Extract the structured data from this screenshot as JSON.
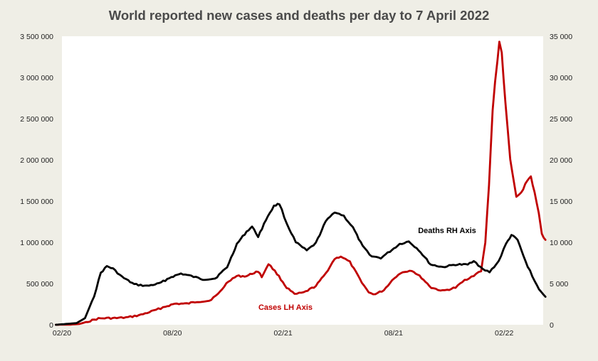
{
  "chart_data": {
    "type": "line",
    "title": "World reported new cases and deaths per day to 7 April 2022",
    "x_ticks": [
      "02/20",
      "08/20",
      "02/21",
      "08/21",
      "02/22"
    ],
    "y_left": {
      "ticks": [
        "0",
        "500 000",
        "1 000 000",
        "1 500 000",
        "2 000 000",
        "2 500 000",
        "3 000 000",
        "3 500 000"
      ],
      "range": [
        0,
        3500000
      ]
    },
    "y_right": {
      "ticks": [
        "0",
        "5 000",
        "10 000",
        "15 000",
        "20 000",
        "25 000",
        "30 000",
        "35 000"
      ],
      "range": [
        0,
        35000
      ]
    },
    "grid": false,
    "annotations": {
      "deaths": "Deaths RH Axis",
      "cases": "Cases LH Axis"
    },
    "series": [
      {
        "name": "Cases",
        "axis": "left",
        "color": "#c00000",
        "points": [
          [
            "2020-01-22",
            0
          ],
          [
            "2020-02-15",
            2000
          ],
          [
            "2020-03-01",
            10000
          ],
          [
            "2020-03-15",
            40000
          ],
          [
            "2020-04-01",
            75000
          ],
          [
            "2020-04-15",
            80000
          ],
          [
            "2020-05-01",
            80000
          ],
          [
            "2020-05-20",
            90000
          ],
          [
            "2020-06-10",
            120000
          ],
          [
            "2020-07-01",
            170000
          ],
          [
            "2020-07-20",
            220000
          ],
          [
            "2020-08-05",
            255000
          ],
          [
            "2020-08-25",
            255000
          ],
          [
            "2020-09-10",
            280000
          ],
          [
            "2020-09-30",
            290000
          ],
          [
            "2020-10-15",
            370000
          ],
          [
            "2020-11-01",
            530000
          ],
          [
            "2020-11-15",
            590000
          ],
          [
            "2020-12-01",
            590000
          ],
          [
            "2020-12-10",
            620000
          ],
          [
            "2020-12-20",
            650000
          ],
          [
            "2020-12-26",
            580000
          ],
          [
            "2021-01-06",
            740000
          ],
          [
            "2021-01-20",
            620000
          ],
          [
            "2021-02-05",
            450000
          ],
          [
            "2021-02-18",
            370000
          ],
          [
            "2021-03-05",
            390000
          ],
          [
            "2021-03-25",
            470000
          ],
          [
            "2021-04-10",
            620000
          ],
          [
            "2021-04-25",
            800000
          ],
          [
            "2021-05-05",
            830000
          ],
          [
            "2021-05-20",
            760000
          ],
          [
            "2021-06-05",
            560000
          ],
          [
            "2021-06-20",
            390000
          ],
          [
            "2021-07-01",
            370000
          ],
          [
            "2021-07-15",
            420000
          ],
          [
            "2021-08-01",
            570000
          ],
          [
            "2021-08-15",
            640000
          ],
          [
            "2021-08-30",
            660000
          ],
          [
            "2021-09-15",
            570000
          ],
          [
            "2021-10-01",
            450000
          ],
          [
            "2021-10-20",
            410000
          ],
          [
            "2021-11-10",
            450000
          ],
          [
            "2021-11-25",
            540000
          ],
          [
            "2021-12-10",
            600000
          ],
          [
            "2021-12-22",
            650000
          ],
          [
            "2021-12-29",
            1000000
          ],
          [
            "2022-01-04",
            1700000
          ],
          [
            "2022-01-10",
            2600000
          ],
          [
            "2022-01-14",
            2950000
          ],
          [
            "2022-01-18",
            3200000
          ],
          [
            "2022-01-21",
            3430000
          ],
          [
            "2022-01-25",
            3300000
          ],
          [
            "2022-01-31",
            2700000
          ],
          [
            "2022-02-08",
            2000000
          ],
          [
            "2022-02-18",
            1550000
          ],
          [
            "2022-02-26",
            1600000
          ],
          [
            "2022-03-08",
            1750000
          ],
          [
            "2022-03-14",
            1800000
          ],
          [
            "2022-03-20",
            1600000
          ],
          [
            "2022-03-27",
            1350000
          ],
          [
            "2022-04-01",
            1100000
          ],
          [
            "2022-04-07",
            1030000
          ]
        ]
      },
      {
        "name": "Deaths",
        "axis": "right",
        "color": "#000000",
        "points": [
          [
            "2020-01-22",
            0
          ],
          [
            "2020-02-25",
            200
          ],
          [
            "2020-03-10",
            800
          ],
          [
            "2020-03-25",
            3500
          ],
          [
            "2020-04-05",
            6300
          ],
          [
            "2020-04-15",
            7100
          ],
          [
            "2020-04-25",
            6800
          ],
          [
            "2020-05-10",
            5800
          ],
          [
            "2020-05-30",
            4900
          ],
          [
            "2020-06-20",
            4700
          ],
          [
            "2020-07-10",
            5000
          ],
          [
            "2020-07-30",
            5800
          ],
          [
            "2020-08-15",
            6200
          ],
          [
            "2020-09-01",
            5900
          ],
          [
            "2020-09-20",
            5500
          ],
          [
            "2020-10-10",
            5600
          ],
          [
            "2020-10-30",
            7000
          ],
          [
            "2020-11-15",
            9800
          ],
          [
            "2020-12-01",
            11300
          ],
          [
            "2020-12-10",
            11900
          ],
          [
            "2020-12-20",
            10700
          ],
          [
            "2021-01-05",
            13200
          ],
          [
            "2021-01-15",
            14400
          ],
          [
            "2021-01-24",
            14700
          ],
          [
            "2021-02-05",
            12300
          ],
          [
            "2021-02-20",
            10000
          ],
          [
            "2021-03-10",
            9000
          ],
          [
            "2021-03-25",
            9900
          ],
          [
            "2021-04-10",
            12500
          ],
          [
            "2021-04-25",
            13700
          ],
          [
            "2021-05-10",
            13200
          ],
          [
            "2021-05-25",
            11800
          ],
          [
            "2021-06-10",
            9500
          ],
          [
            "2021-06-25",
            8300
          ],
          [
            "2021-07-10",
            8100
          ],
          [
            "2021-07-25",
            8900
          ],
          [
            "2021-08-10",
            9800
          ],
          [
            "2021-08-25",
            10100
          ],
          [
            "2021-09-10",
            9100
          ],
          [
            "2021-09-30",
            7300
          ],
          [
            "2021-10-20",
            7000
          ],
          [
            "2021-11-10",
            7300
          ],
          [
            "2021-11-30",
            7300
          ],
          [
            "2021-12-10",
            7800
          ],
          [
            "2021-12-25",
            6700
          ],
          [
            "2022-01-05",
            6400
          ],
          [
            "2022-01-20",
            7700
          ],
          [
            "2022-02-01",
            9800
          ],
          [
            "2022-02-10",
            10900
          ],
          [
            "2022-02-20",
            10300
          ],
          [
            "2022-03-05",
            7700
          ],
          [
            "2022-03-20",
            5300
          ],
          [
            "2022-03-31",
            3900
          ],
          [
            "2022-04-07",
            3400
          ]
        ]
      }
    ]
  }
}
